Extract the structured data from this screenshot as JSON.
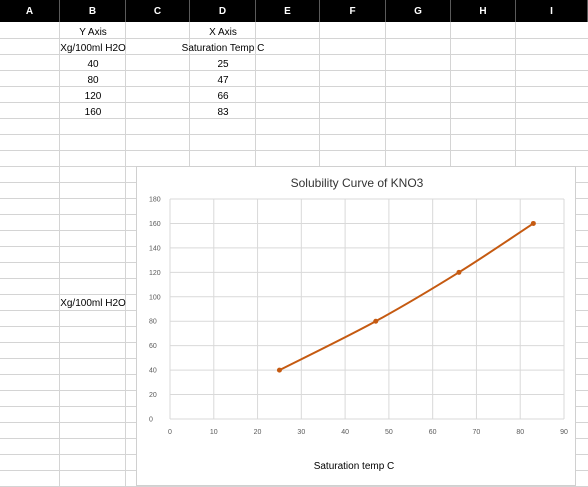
{
  "columns": [
    "A",
    "B",
    "C",
    "D",
    "E",
    "F",
    "G",
    "H",
    "I"
  ],
  "cells": {
    "b_row1": "Y Axis",
    "b_row2": "Xg/100ml H2O",
    "d_row1": "X Axis",
    "d_row2": "Saturation Temp C",
    "b_values": [
      "40",
      "80",
      "120",
      "160"
    ],
    "d_values": [
      "25",
      "47",
      "66",
      "83"
    ],
    "b_row18": "Xg/100ml H2O"
  },
  "chart_data": {
    "type": "scatter",
    "title": "Solubility Curve of KNO3",
    "xlabel": "Saturation temp C",
    "ylabel": "",
    "x": [
      25,
      47,
      66,
      83
    ],
    "y": [
      40,
      80,
      120,
      160
    ],
    "xlim": [
      0,
      90
    ],
    "ylim": [
      0,
      180
    ],
    "x_ticks": [
      "0",
      "10",
      "20",
      "30",
      "40",
      "50",
      "60",
      "70",
      "80",
      "90"
    ],
    "y_ticks": [
      "0",
      "20",
      "40",
      "60",
      "80",
      "100",
      "120",
      "140",
      "160",
      "180"
    ],
    "grid": true,
    "smooth_line": true,
    "series_color": "#c55a11",
    "legend": "none"
  }
}
